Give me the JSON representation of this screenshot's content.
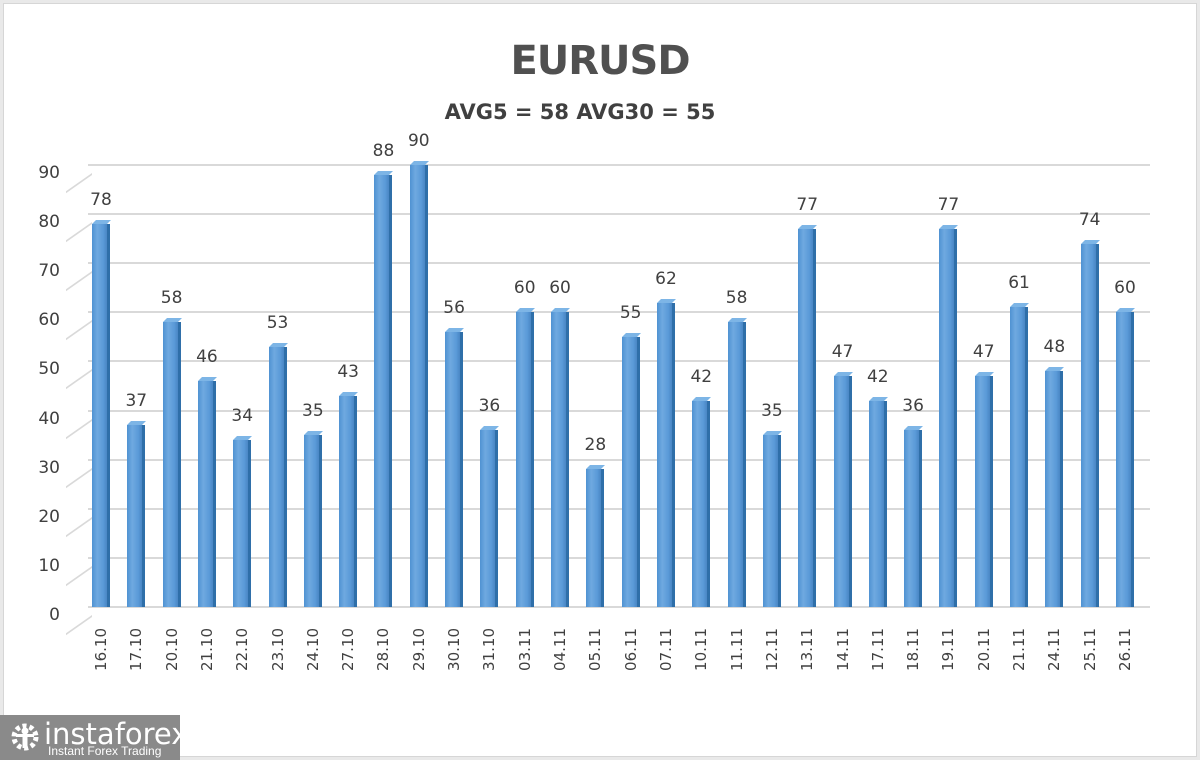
{
  "chart_data": {
    "type": "bar",
    "title": "EURUSD",
    "subtitle": "AVG5 = 58 AVG30 = 55",
    "xlabel": "",
    "ylabel": "",
    "ylim": [
      0,
      90
    ],
    "yticks": [
      0,
      10,
      20,
      30,
      40,
      50,
      60,
      70,
      80,
      90
    ],
    "grid": true,
    "legend": null,
    "data_labels": true,
    "categories": [
      "16.10",
      "17.10",
      "20.10",
      "21.10",
      "22.10",
      "23.10",
      "24.10",
      "27.10",
      "28.10",
      "29.10",
      "30.10",
      "31.10",
      "03.11",
      "04.11",
      "05.11",
      "06.11",
      "07.11",
      "10.11",
      "11.11",
      "12.11",
      "13.11",
      "14.11",
      "17.11",
      "18.11",
      "19.11",
      "20.11",
      "21.11",
      "24.11",
      "25.11",
      "26.11"
    ],
    "values": [
      78,
      37,
      58,
      46,
      34,
      53,
      35,
      43,
      88,
      90,
      56,
      36,
      60,
      60,
      28,
      55,
      62,
      42,
      58,
      35,
      77,
      47,
      42,
      36,
      77,
      47,
      61,
      48,
      74,
      60
    ],
    "bar_color": "#5b9bd5"
  },
  "header": {
    "title": "EURUSD",
    "subtitle": "AVG5 = 58 AVG30 = 55"
  },
  "watermark": {
    "brand": "instaforex",
    "tagline": "Instant Forex Trading",
    "icon": "gear-person-icon"
  }
}
